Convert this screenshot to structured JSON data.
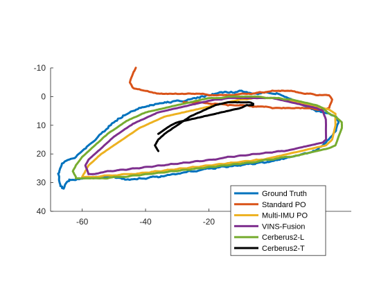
{
  "chart_data": {
    "type": "line",
    "title": "",
    "xlabel": "",
    "ylabel": "",
    "xlim": [
      -70,
      25
    ],
    "ylim": [
      -10,
      40
    ],
    "y_reversed": true,
    "x_ticks": [
      -60,
      -40,
      -20
    ],
    "y_ticks": [
      -10,
      0,
      10,
      20,
      30,
      40
    ],
    "grid": false,
    "legend_position": "bottom-right",
    "series": [
      {
        "name": "Ground Truth",
        "color": "#0072BD",
        "x": [
          -67.5,
          -67,
          -66,
          -64,
          -62,
          -60,
          -58,
          -56,
          -54,
          -52,
          -50,
          -48,
          -46,
          -44,
          -42,
          -40,
          -38,
          -36,
          -34,
          -32,
          -30,
          -28,
          -26,
          -24,
          -22,
          -20,
          -18,
          -16,
          -14,
          -12,
          -10,
          -8,
          -6,
          -4,
          -2,
          0,
          2,
          4,
          6,
          8,
          10,
          12,
          14,
          16,
          18,
          20,
          21,
          20,
          18,
          16,
          14,
          12,
          10,
          8,
          6,
          4,
          2,
          0,
          -2,
          -4,
          -6,
          -8,
          -10,
          -12,
          -14,
          -16,
          -18,
          -20,
          -22,
          -24,
          -26,
          -28,
          -30,
          -32,
          -34,
          -36,
          -38,
          -40,
          -42,
          -44,
          -46,
          -48,
          -50,
          -52,
          -54,
          -56,
          -58,
          -60,
          -62,
          -64,
          -65,
          -66,
          -67,
          -67.5
        ],
        "y": [
          27,
          25,
          23,
          22,
          21,
          19,
          17,
          15,
          13,
          11,
          9,
          7.5,
          6,
          5,
          4,
          3.5,
          3,
          2.5,
          2,
          2,
          1.5,
          1.5,
          1,
          0.5,
          0,
          -0.5,
          -1,
          -1.5,
          -1.5,
          -1.5,
          -2,
          -1.5,
          -1,
          -1,
          -1.5,
          -1,
          -1,
          0,
          1,
          2,
          3,
          4,
          5,
          5.5,
          6,
          7,
          9,
          12,
          15,
          17,
          18.5,
          19.5,
          20,
          20.5,
          21,
          21.5,
          22,
          22.5,
          23,
          23,
          23.5,
          23.5,
          24,
          24,
          24.5,
          24.5,
          25,
          25,
          25.5,
          26,
          26,
          26.5,
          27,
          27,
          27.5,
          28,
          28,
          28.5,
          28.5,
          29,
          29,
          28.5,
          28,
          28,
          28,
          28,
          28.5,
          28.5,
          29,
          29,
          30,
          32,
          31,
          27
        ]
      },
      {
        "name": "Standard PO",
        "color": "#D95319",
        "x": [
          -43,
          -44,
          -45,
          -44,
          -42,
          -40,
          -38,
          -36,
          -34,
          -32,
          -30,
          -28,
          -26,
          -24,
          -22,
          -20,
          -18,
          -16,
          -14,
          -12,
          -10,
          -8,
          -6,
          -4,
          -2,
          0,
          2,
          4,
          6,
          8,
          10,
          12,
          14,
          16,
          18,
          19,
          18,
          16,
          14,
          12,
          10,
          8,
          6,
          4,
          2,
          0,
          -2,
          -4,
          -6,
          -8,
          -10,
          -12,
          -14,
          -16,
          -18,
          -20,
          -22,
          -24,
          -26,
          -28
        ],
        "y": [
          -10,
          -8,
          -5,
          -3,
          -2.5,
          -2,
          -1.5,
          -1,
          -1,
          -1,
          -1,
          -1,
          -1,
          -1,
          -1,
          -0.5,
          -0.5,
          -0.5,
          -0.5,
          -0.5,
          -1,
          -1,
          -1,
          -1.5,
          -1.5,
          -2,
          -2,
          -2,
          -2,
          -1.5,
          -1,
          -1,
          -0.5,
          -0.5,
          -0.5,
          1,
          4,
          4.5,
          4.5,
          4,
          4,
          4,
          4,
          4,
          4,
          4,
          3.5,
          3.5,
          3.5,
          3,
          3,
          3,
          3,
          2.5,
          2.5,
          2.5,
          2,
          2,
          2,
          2
        ]
      },
      {
        "name": "Multi-IMU PO",
        "color": "#EDB120",
        "x": [
          -60,
          -59,
          -58,
          -56,
          -54,
          -52,
          -50,
          -48,
          -46,
          -44,
          -42,
          -40,
          -38,
          -36,
          -34,
          -32,
          -30,
          -28,
          -26,
          -24,
          -22,
          -20,
          -18,
          -16,
          -14,
          -12,
          -10,
          -8,
          -6,
          -4,
          -2,
          0,
          2,
          4,
          6,
          8,
          10,
          12,
          14,
          16,
          18,
          20,
          20,
          19,
          17,
          15,
          13,
          11,
          9,
          7,
          5,
          3,
          1,
          -1,
          -3,
          -5,
          -7,
          -9,
          -11,
          -13,
          -15,
          -17,
          -19,
          -21,
          -23,
          -25,
          -27,
          -29,
          -31,
          -33,
          -35,
          -37,
          -39,
          -41,
          -43,
          -45,
          -47,
          -49,
          -51,
          -53,
          -55,
          -57,
          -59,
          -60
        ],
        "y": [
          28,
          26,
          24,
          22,
          20,
          18.5,
          17,
          15.5,
          14,
          12.5,
          11,
          10,
          9,
          8,
          7,
          6.5,
          6,
          5.5,
          5,
          4.5,
          4,
          3.5,
          3,
          2.5,
          2,
          1.5,
          1,
          1,
          0.5,
          0.5,
          0.5,
          0.5,
          0.5,
          1,
          1.5,
          2,
          2.5,
          3,
          3.5,
          4,
          4.5,
          6,
          10,
          15,
          17,
          17.5,
          18,
          18.5,
          19,
          19.5,
          20,
          20.5,
          21,
          21.5,
          22,
          22,
          22.5,
          22.5,
          23,
          23,
          23.5,
          23.5,
          24,
          24,
          24.5,
          24.5,
          25,
          25,
          25.5,
          25.5,
          26,
          26,
          26.5,
          26.5,
          27,
          27,
          27,
          27.5,
          27.5,
          27.5,
          28,
          28,
          28,
          28
        ]
      },
      {
        "name": "VINS-Fusion",
        "color": "#7E2F8E",
        "x": [
          -58,
          -59,
          -58,
          -56,
          -54,
          -52,
          -50,
          -48,
          -46,
          -44,
          -42,
          -40,
          -38,
          -36,
          -34,
          -32,
          -30,
          -28,
          -26,
          -24,
          -22,
          -20,
          -18,
          -16,
          -14,
          -12,
          -10,
          -8,
          -6,
          -4,
          -2,
          0,
          2,
          4,
          6,
          8,
          10,
          12,
          14,
          16,
          17,
          17,
          16,
          14,
          12,
          10,
          8,
          6,
          4,
          2,
          0,
          -2,
          -4,
          -6,
          -8,
          -10,
          -12,
          -14,
          -16,
          -18,
          -20,
          -22,
          -24,
          -26,
          -28,
          -30,
          -32,
          -34,
          -36,
          -38,
          -40,
          -42,
          -44,
          -46,
          -48,
          -50,
          -52,
          -54,
          -56,
          -58
        ],
        "y": [
          27,
          24,
          22,
          20,
          18,
          16,
          14,
          12.5,
          11,
          9.5,
          8.5,
          7.5,
          6.5,
          5.5,
          5,
          4.5,
          4,
          3.5,
          3,
          2.5,
          2,
          1.5,
          1,
          1,
          0.5,
          0.5,
          0.5,
          0.5,
          0.5,
          0.5,
          0.5,
          0.5,
          1,
          1.5,
          2,
          2.5,
          3,
          3.5,
          4,
          5,
          8,
          15,
          16,
          16.5,
          17,
          17.5,
          18,
          18.5,
          19,
          19,
          19.5,
          19.5,
          20,
          20,
          20.5,
          20.5,
          21,
          21,
          21.5,
          22,
          22,
          22.5,
          22.5,
          23,
          23,
          23.5,
          23.5,
          24,
          24,
          24.5,
          24.5,
          25,
          25,
          25.5,
          25.5,
          26,
          26,
          26.5,
          27,
          27
        ]
      },
      {
        "name": "Cerberus2-L",
        "color": "#77AC30",
        "x": [
          -62,
          -63,
          -62,
          -60,
          -58,
          -56,
          -54,
          -52,
          -50,
          -48,
          -46,
          -44,
          -42,
          -40,
          -38,
          -36,
          -34,
          -32,
          -30,
          -28,
          -26,
          -24,
          -22,
          -20,
          -18,
          -16,
          -14,
          -12,
          -10,
          -8,
          -6,
          -4,
          -2,
          0,
          2,
          4,
          6,
          8,
          10,
          12,
          14,
          16,
          18,
          20,
          22,
          22,
          20,
          18,
          16,
          14,
          12,
          10,
          8,
          6,
          4,
          2,
          0,
          -2,
          -4,
          -6,
          -8,
          -10,
          -12,
          -14,
          -16,
          -18,
          -20,
          -22,
          -24,
          -26,
          -28,
          -30,
          -32,
          -34,
          -36,
          -38,
          -40,
          -42,
          -44,
          -46,
          -48,
          -50,
          -52,
          -54,
          -56,
          -58,
          -60,
          -62
        ],
        "y": [
          28,
          26,
          24,
          21,
          19,
          17,
          15,
          13,
          11.5,
          10,
          8.5,
          7.5,
          6.5,
          5.5,
          5,
          4.5,
          4,
          3.5,
          3,
          2.5,
          2,
          1.5,
          1,
          0.5,
          0.5,
          0.5,
          0,
          0,
          0,
          0,
          0,
          0,
          0.5,
          0.5,
          0.5,
          1,
          1,
          1.5,
          2,
          2.5,
          3,
          4,
          6,
          7,
          9,
          11,
          17,
          18,
          18.5,
          19,
          19.5,
          20,
          20.5,
          21,
          21,
          21.5,
          22,
          22,
          22.5,
          23,
          23,
          23.5,
          23.5,
          24,
          24,
          24.5,
          24.5,
          25,
          25,
          25.5,
          25.5,
          26,
          26,
          26.5,
          26.5,
          27,
          27,
          27.5,
          27.5,
          28,
          28,
          28,
          28.5,
          28.5,
          28.5,
          28.5,
          28.5,
          28.5
        ]
      },
      {
        "name": "Cerberus2-T",
        "color": "#000000",
        "x": [
          -36,
          -37,
          -36,
          -34,
          -32,
          -30,
          -28,
          -26,
          -24,
          -22,
          -20,
          -18,
          -16,
          -14,
          -12,
          -10,
          -8,
          -7,
          -6,
          -6,
          -8,
          -10,
          -12,
          -14,
          -16,
          -18,
          -20,
          -22,
          -24,
          -26,
          -28,
          -30,
          -32,
          -34,
          -36
        ],
        "y": [
          19,
          17,
          15,
          13,
          11.5,
          10,
          8.5,
          7,
          6,
          5,
          4,
          3,
          2.5,
          2,
          2,
          2,
          2,
          2,
          2.5,
          3,
          3,
          4,
          4.5,
          5,
          5.5,
          6,
          6.5,
          7,
          7.5,
          8,
          8.5,
          9,
          10,
          11.5,
          13
        ]
      }
    ]
  }
}
